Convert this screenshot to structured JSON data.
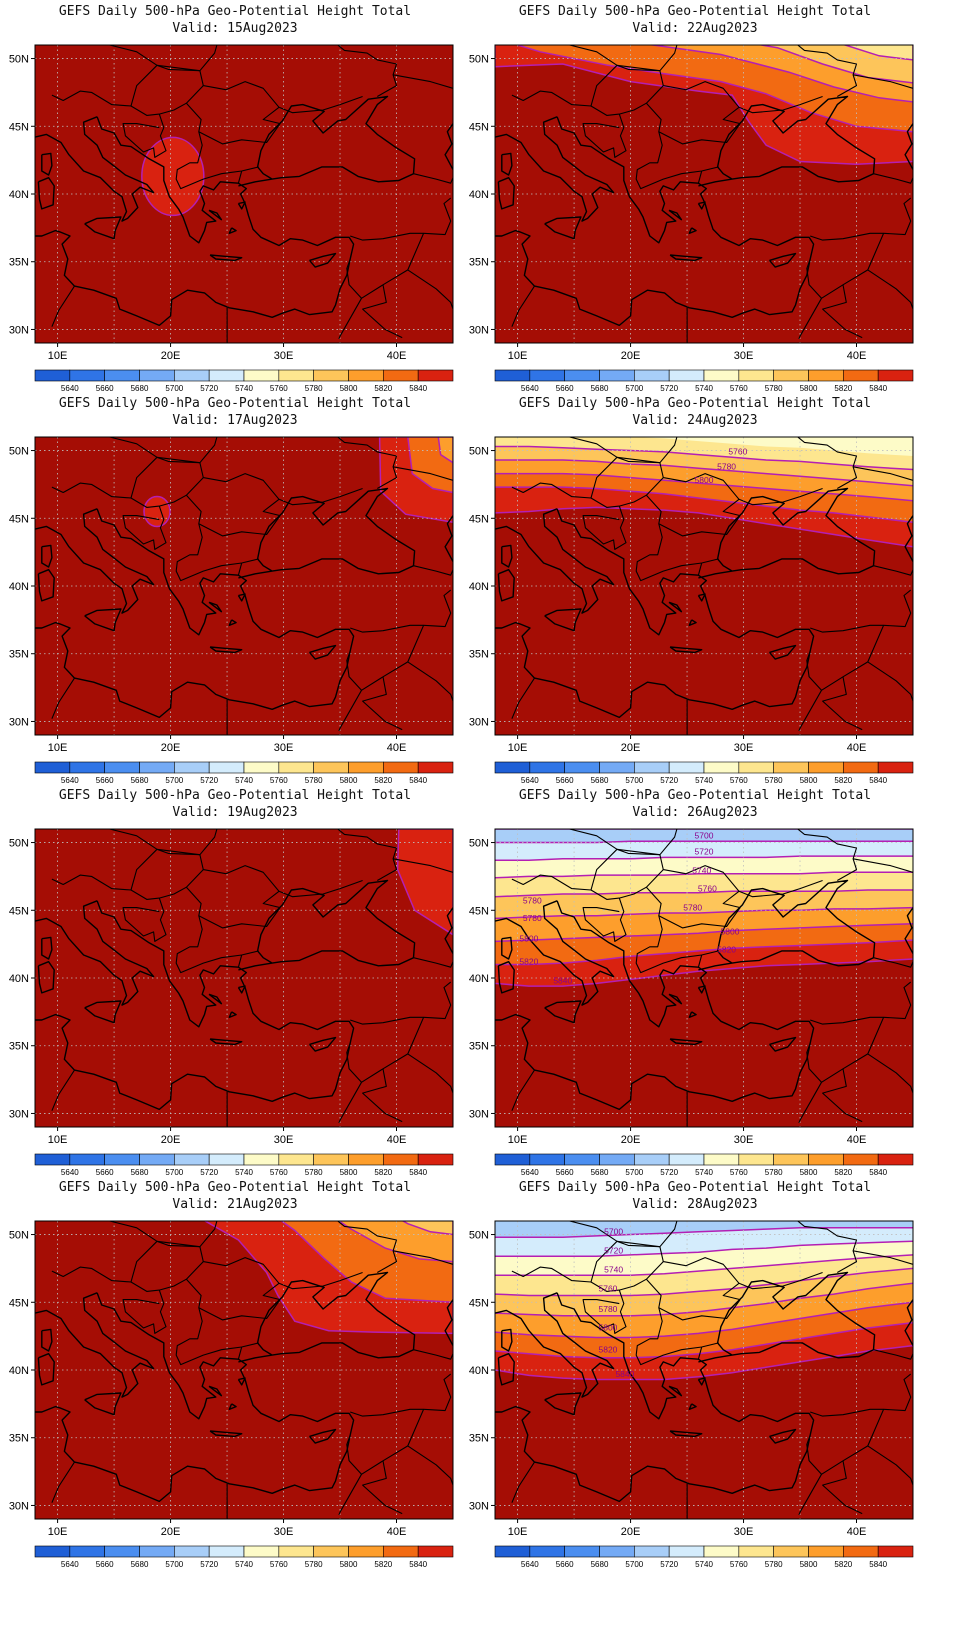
{
  "colors": {
    "c5620": "#1f5fd6",
    "c5640": "#2f74e6",
    "c5660": "#4b8ef0",
    "c5680": "#74aaf5",
    "c5700": "#a8cef8",
    "c5720": "#d4ecfc",
    "c5740": "#fdfbc8",
    "c5760": "#fde68f",
    "c5780": "#fdc55a",
    "c5800": "#fd9e2c",
    "c5820": "#f26a12",
    "c5840": "#d92210",
    "c5860": "#a50d05",
    "contour": "#b41fb4",
    "coast": "#000000",
    "grid": "#bfbfbf"
  },
  "colorbar": {
    "labels": [
      "5640",
      "5660",
      "5680",
      "5700",
      "5720",
      "5740",
      "5760",
      "5780",
      "5800",
      "5820",
      "5840"
    ]
  },
  "axes": {
    "lat_ticks": [
      "50N",
      "45N",
      "40N",
      "35N",
      "30N"
    ],
    "lon_ticks": [
      "10E",
      "20E",
      "30E",
      "40E"
    ],
    "lat_range": [
      29,
      51
    ],
    "lon_range": [
      8,
      45
    ]
  },
  "panels": [
    {
      "title": "GEFS Daily 500-hPa Geo-Potential Height Total",
      "valid": "Valid: 15Aug2023",
      "pattern": "blob",
      "labels": []
    },
    {
      "title": "GEFS Daily 500-hPa Geo-Potential Height Total",
      "valid": "Valid: 22Aug2023",
      "pattern": "ne_fan",
      "labels": []
    },
    {
      "title": "GEFS Daily 500-hPa Geo-Potential Height Total",
      "valid": "Valid: 17Aug2023",
      "pattern": "small_blob",
      "labels": []
    },
    {
      "title": "GEFS Daily 500-hPa Geo-Potential Height Total",
      "valid": "Valid: 24Aug2023",
      "pattern": "north_bands",
      "labels": [
        "5760",
        "5780",
        "5800"
      ]
    },
    {
      "title": "GEFS Daily 500-hPa Geo-Potential Height Total",
      "valid": "Valid: 19Aug2023",
      "pattern": "corner",
      "labels": []
    },
    {
      "title": "GEFS Daily 500-hPa Geo-Potential Height Total",
      "valid": "Valid: 26Aug2023",
      "pattern": "full_bands",
      "labels": [
        "5700",
        "5720",
        "5740",
        "5760",
        "5780",
        "5780",
        "5780",
        "5800",
        "5800",
        "5820",
        "5820",
        "5840"
      ]
    },
    {
      "title": "GEFS Daily 500-hPa Geo-Potential Height Total",
      "valid": "Valid: 21Aug2023",
      "pattern": "east_fan",
      "labels": []
    },
    {
      "title": "GEFS Daily 500-hPa Geo-Potential Height Total",
      "valid": "Valid: 28Aug2023",
      "pattern": "full_bands2",
      "labels": [
        "5700",
        "5720",
        "5740",
        "5760",
        "5780",
        "5800",
        "5820",
        "5840"
      ]
    }
  ]
}
